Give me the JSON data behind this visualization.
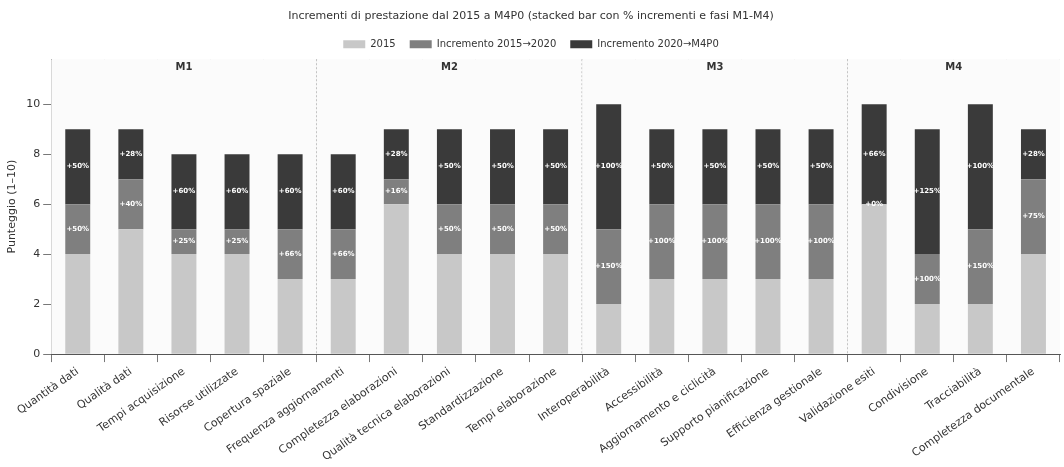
{
  "chart_data": {
    "type": "bar",
    "title": "Incrementi di prestazione dal 2015 a M4P0 (stacked bar con % incrementi e fasi M1-M4)",
    "ylabel": "Punteggio (1–10)",
    "categories": [
      "Quantità dati",
      "Qualità dati",
      "Tempi acquisizione",
      "Risorse utilizzate",
      "Copertura spaziale",
      "Frequenza aggiornamenti",
      "Completezza elaborazioni",
      "Qualità tecnica elaborazioni",
      "Standardizzazione",
      "Tempi elaborazione",
      "Interoperabilità",
      "Accessibilità",
      "Aggiornamento e ciclicità",
      "Supporto pianificazione",
      "Efficienza gestionale",
      "Validazione esiti",
      "Condivisione",
      "Tracciabilità",
      "Completezza documentale"
    ],
    "stacked": true,
    "series": [
      {
        "name": "2015",
        "color": "#c8c8c8",
        "values": [
          4,
          5,
          4,
          4,
          3,
          3,
          6,
          4,
          4,
          4,
          2,
          3,
          3,
          3,
          3,
          6,
          2,
          2,
          4
        ]
      },
      {
        "name": "Incremento 2015→2020",
        "color": "#7f7f7f",
        "values": [
          2,
          2,
          1,
          1,
          2,
          2,
          1,
          2,
          2,
          2,
          3,
          3,
          3,
          3,
          3,
          0,
          2,
          3,
          3
        ]
      },
      {
        "name": "Incremento 2020→M4P0",
        "color": "#3a3a3a",
        "values": [
          3,
          2,
          3,
          3,
          3,
          3,
          2,
          3,
          3,
          3,
          5,
          3,
          3,
          3,
          3,
          4,
          5,
          5,
          2
        ]
      }
    ],
    "annotations": [
      "+50%",
      "+50%",
      "+40%",
      "+28%",
      "+25%",
      "+60%",
      "+25%",
      "+60%",
      "+66%",
      "+60%",
      "+66%",
      "+60%",
      "+16%",
      "+28%",
      "+50%",
      "+50%",
      "+50%",
      "+50%",
      "+50%",
      "+50%",
      "+150%",
      "+100%",
      "+100%",
      "+50%",
      "+100%",
      "+50%",
      "+100%",
      "+50%",
      "+100%",
      "+50%",
      "+0%",
      "+66%",
      "+100%",
      "+125%",
      "+150%",
      "+100%",
      "+75%",
      "+28%"
    ],
    "ylim": [
      0,
      11.8
    ],
    "yticks": [
      0,
      2,
      4,
      6,
      8,
      10
    ],
    "grid": true,
    "legend": "top",
    "bands": [
      {
        "axis": "x",
        "from": "Quantità dati",
        "to": "Copertura spaziale",
        "label": "M1",
        "color": "#fbfbfb"
      },
      {
        "axis": "x",
        "from": "Frequenza aggiornamenti",
        "to": "Tempi elaborazione",
        "label": "M2",
        "color": "#fbfbfb"
      },
      {
        "axis": "x",
        "from": "Interoperabilità",
        "to": "Efficienza gestionale",
        "label": "M3",
        "color": "#fbfbfb"
      },
      {
        "axis": "x",
        "from": "Validazione esiti",
        "to": "Completezza documentale",
        "label": "M4",
        "color": "#fbfbfb"
      }
    ]
  }
}
